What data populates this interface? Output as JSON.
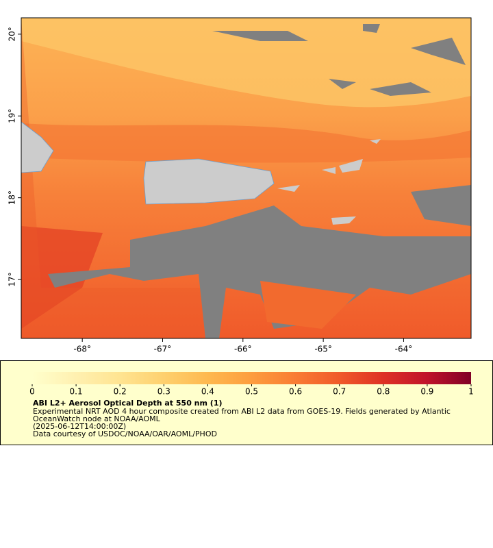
{
  "map": {
    "xlim": [
      -68.76,
      -63.16
    ],
    "ylim": [
      16.28,
      20.2
    ],
    "xticks": [
      {
        "value": -68,
        "label": "-68°"
      },
      {
        "value": -67,
        "label": "-67°"
      },
      {
        "value": -66,
        "label": "-66°"
      },
      {
        "value": -65,
        "label": "-65°"
      },
      {
        "value": -64,
        "label": "-64°"
      }
    ],
    "yticks": [
      {
        "value": 17,
        "label": "17°"
      },
      {
        "value": 18,
        "label": "18°"
      },
      {
        "value": 19,
        "label": "19°"
      },
      {
        "value": 20,
        "label": "20°"
      }
    ]
  },
  "colorbar": {
    "lim": [
      0,
      1
    ],
    "ticks": [
      0,
      0.1,
      0.2,
      0.3,
      0.4,
      0.5,
      0.6,
      0.7,
      0.8,
      0.9,
      1
    ],
    "colors": [
      "#ffffcc",
      "#fff0b0",
      "#ffe491",
      "#fed06e",
      "#feb94f",
      "#fd9d3e",
      "#f97c33",
      "#f05a2a",
      "#de3124",
      "#c0142a",
      "#800026"
    ]
  },
  "caption": {
    "title": "ABI L2+ Aerosol Optical Depth at 550 nm (1)",
    "lines": [
      "Experimental NRT AOD 4 hour composite created from ABI L2 data from GOES-19. Fields generated by Atlantic",
      "OceanWatch node at NOAA/AOML",
      "(2025-06-12T14:00:00Z)",
      "Data courtesy of USDOC/NOAA/OAR/AOML/PHOD"
    ]
  }
}
